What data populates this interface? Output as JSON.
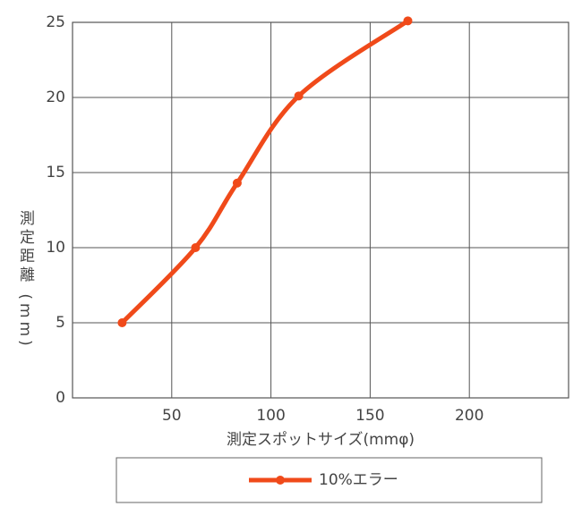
{
  "chart_data": {
    "type": "line",
    "x_label": "測定スポットサイズ(mmφ)",
    "y_label": "測定距離 (mm)",
    "xlim": [
      0,
      250
    ],
    "xticks": [
      50,
      100,
      150,
      200
    ],
    "ylim": [
      0,
      25
    ],
    "yticks": [
      0,
      5,
      10,
      15,
      20,
      25
    ],
    "grid": true,
    "legend": "bottom",
    "series": [
      {
        "name": "10%エラー",
        "color": "#f04a1a",
        "x": [
          25,
          62,
          83,
          114,
          169
        ],
        "values": [
          5,
          10,
          14.3,
          20.1,
          25.1
        ]
      }
    ]
  }
}
